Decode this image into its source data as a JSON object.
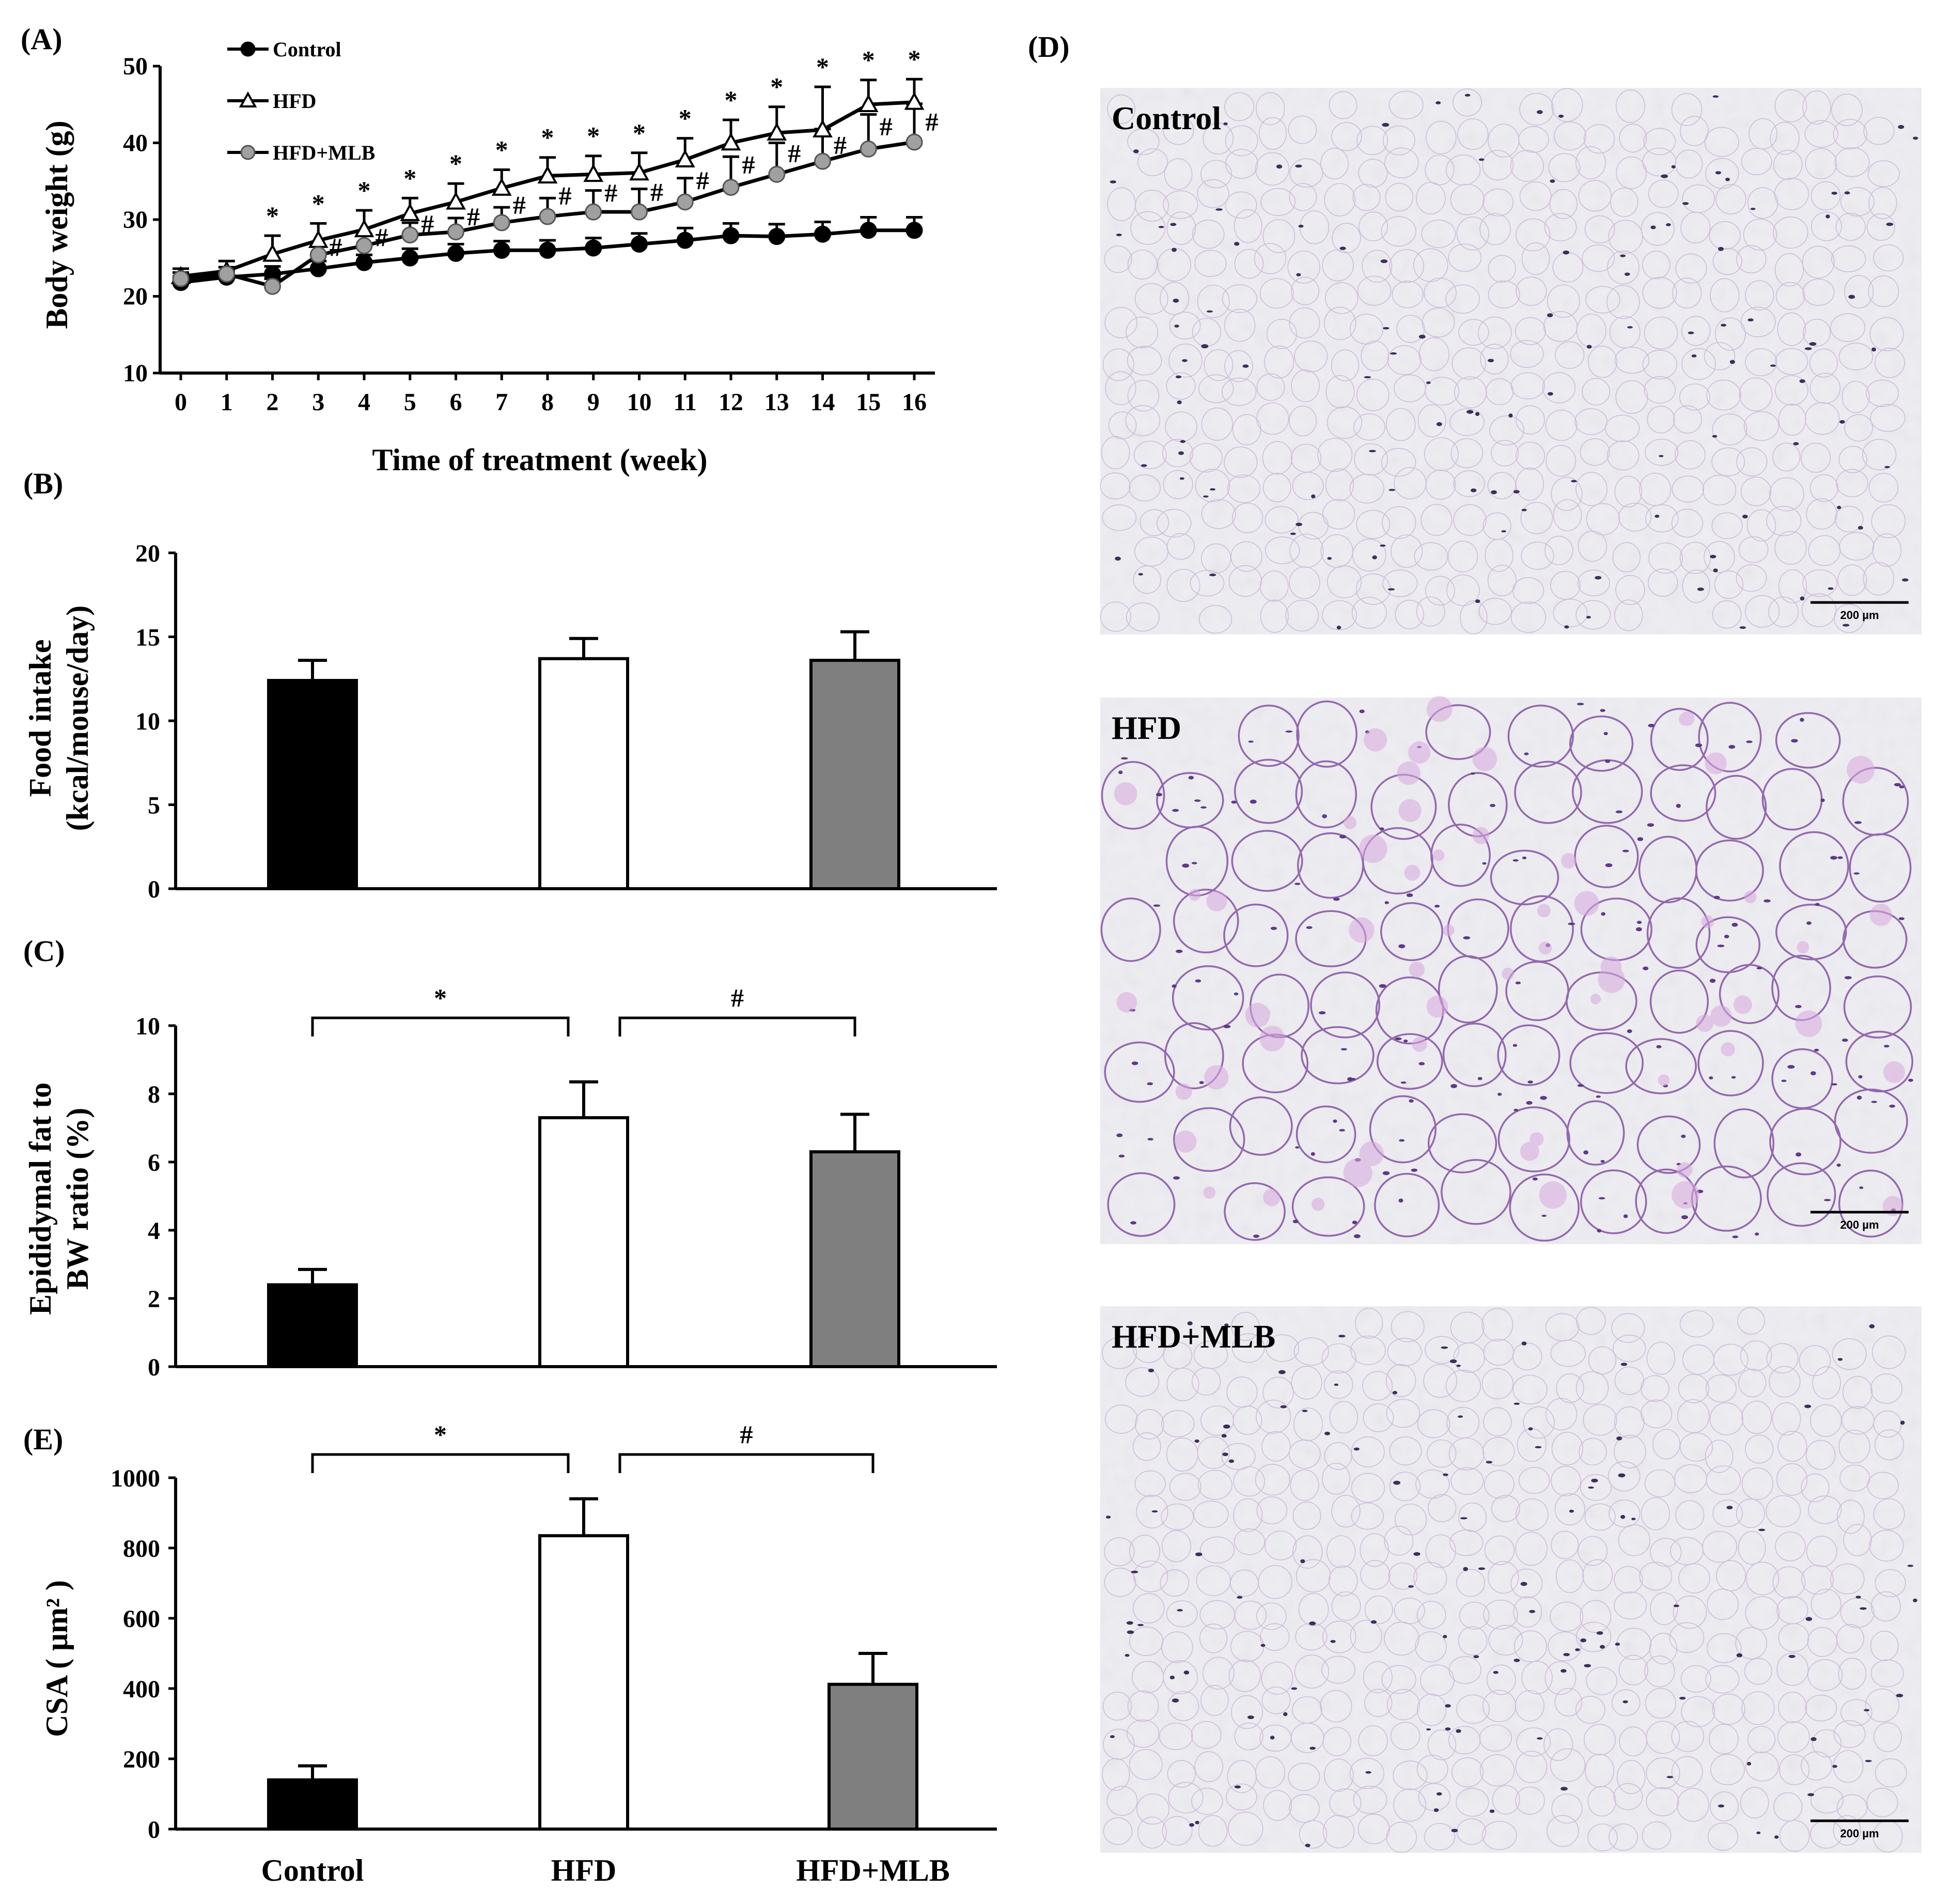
{
  "chart_data": [
    {
      "panel": "(A)",
      "type": "line",
      "xlabel": "Time of treatment (week)",
      "ylabel": "Body weight (g)",
      "x": [
        0,
        1,
        2,
        3,
        4,
        5,
        6,
        7,
        8,
        9,
        10,
        11,
        12,
        13,
        14,
        15,
        16
      ],
      "ylim": [
        10,
        50
      ],
      "yticks": [
        10,
        20,
        30,
        40,
        50
      ],
      "legend_position": "top-left",
      "series": [
        {
          "name": "Control",
          "marker": "filled-circle",
          "color": "#000000",
          "values": [
            21.8,
            22.5,
            22.9,
            23.6,
            24.4,
            25.0,
            25.6,
            26.0,
            26.0,
            26.3,
            26.8,
            27.3,
            27.9,
            27.8,
            28.1,
            28.6,
            28.6
          ],
          "errors": [
            0.8,
            0.8,
            1.0,
            1.0,
            1.0,
            1.2,
            1.2,
            1.2,
            1.3,
            1.3,
            1.4,
            1.6,
            1.6,
            1.6,
            1.6,
            1.7,
            1.7
          ]
        },
        {
          "name": "HFD",
          "marker": "open-triangle",
          "color": "#ffffff",
          "values": [
            22.6,
            23.3,
            25.5,
            27.3,
            28.7,
            30.8,
            32.3,
            34.1,
            35.7,
            35.9,
            36.1,
            37.8,
            40.0,
            41.3,
            41.7,
            45.0,
            45.3
          ],
          "errors": [
            1.0,
            1.3,
            2.4,
            2.2,
            2.5,
            2.0,
            2.4,
            2.4,
            2.4,
            2.4,
            2.6,
            2.8,
            3.0,
            3.4,
            5.6,
            3.2,
            3.0
          ]
        },
        {
          "name": "HFD+MLB",
          "marker": "gray-circle",
          "color": "#a0a0a0",
          "values": [
            22.3,
            22.9,
            21.3,
            25.4,
            26.6,
            28.0,
            28.4,
            29.6,
            30.4,
            31.0,
            31.0,
            32.3,
            34.2,
            35.9,
            37.6,
            39.2,
            40.1
          ],
          "errors": [
            0.8,
            0.9,
            1.0,
            1.2,
            1.5,
            1.6,
            1.8,
            2.0,
            2.4,
            2.8,
            3.0,
            3.1,
            4.0,
            4.1,
            4.2,
            4.5,
            5.0
          ]
        }
      ],
      "annotations": {
        "hfd_vs_control": {
          "symbol": "*",
          "weeks": [
            2,
            3,
            4,
            5,
            6,
            7,
            8,
            9,
            10,
            11,
            12,
            13,
            14,
            15,
            16
          ]
        },
        "mlb_vs_hfd": {
          "symbol": "#",
          "weeks": [
            3,
            4,
            5,
            6,
            7,
            8,
            9,
            10,
            11,
            12,
            13,
            14,
            15,
            16
          ]
        }
      }
    },
    {
      "panel": "(B)",
      "type": "bar",
      "categories": [
        "Control",
        "HFD",
        "HFD+MLB"
      ],
      "values": [
        12.4,
        13.7,
        13.6
      ],
      "errors": [
        1.2,
        1.2,
        1.7
      ],
      "colors": [
        "#000000",
        "#ffffff",
        "#7f7f7f"
      ],
      "ylabel_line1": "Food intake",
      "ylabel_line2": "(kcal/mouse/day)",
      "ylim": [
        0,
        20
      ],
      "yticks": [
        0,
        5,
        10,
        15,
        20
      ]
    },
    {
      "panel": "(C)",
      "type": "bar",
      "categories": [
        "Control",
        "HFD",
        "HFD+MLB"
      ],
      "values": [
        2.4,
        7.3,
        6.3
      ],
      "errors": [
        0.45,
        1.05,
        1.1
      ],
      "colors": [
        "#000000",
        "#ffffff",
        "#7f7f7f"
      ],
      "ylabel_line1": "Epididymal fat to",
      "ylabel_line2": "BW ratio (%)",
      "ylim": [
        0,
        10
      ],
      "yticks": [
        0,
        2,
        4,
        6,
        8,
        10
      ],
      "brackets": [
        {
          "from": 0,
          "to": 1,
          "symbol": "*"
        },
        {
          "from": 1,
          "to": 2,
          "symbol": "#"
        }
      ]
    },
    {
      "panel": "(E)",
      "type": "bar",
      "categories": [
        "Control",
        "HFD",
        "HFD+MLB"
      ],
      "values": [
        140,
        835,
        412
      ],
      "errors": [
        40,
        105,
        88
      ],
      "colors": [
        "#000000",
        "#ffffff",
        "#7f7f7f"
      ],
      "ylabel": "CSA ( μm² )",
      "ylim": [
        0,
        1000
      ],
      "yticks": [
        0,
        200,
        400,
        600,
        800,
        1000
      ],
      "brackets": [
        {
          "from": 0,
          "to": 1,
          "symbol": "*"
        },
        {
          "from": 1,
          "to": 2,
          "symbol": "#"
        }
      ]
    }
  ],
  "panel_d": {
    "label": "(D)",
    "images": [
      {
        "label": "Control",
        "scale_bar": "200 µm",
        "adipocyte_size": "small"
      },
      {
        "label": "HFD",
        "scale_bar": "200 µm",
        "adipocyte_size": "large"
      },
      {
        "label": "HFD+MLB",
        "scale_bar": "200 µm",
        "adipocyte_size": "small"
      }
    ]
  }
}
